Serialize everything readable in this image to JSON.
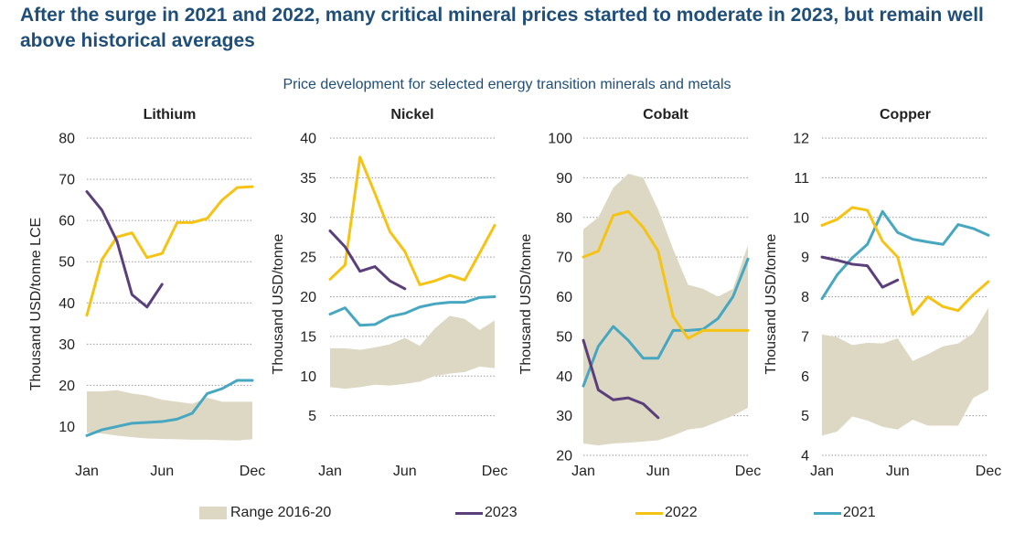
{
  "headline": "After the surge in 2021 and 2022, many critical mineral prices started to moderate in 2023, but remain well above historical averages",
  "subtitle": "Price development for selected energy transition minerals and metals",
  "colors": {
    "range": "#ddd8c4",
    "y2023": "#5a3f7a",
    "y2022": "#f5c314",
    "y2021": "#47a7c1",
    "grid": "#9a9a9a",
    "text": "#222222",
    "title": "#1f4e79"
  },
  "legend": {
    "range": "Range 2016-20",
    "y2023": "2023",
    "y2022": "2022",
    "y2021": "2021"
  },
  "chart_data": [
    {
      "type": "line",
      "title": "Lithium",
      "ylabel": "Thousand USD/tonne LCE",
      "ylim": [
        3,
        80
      ],
      "yticks": [
        10,
        20,
        30,
        40,
        50,
        60,
        70,
        80
      ],
      "x_ticks": [
        "Jan",
        "Jun",
        "Dec"
      ],
      "grid": "horizontal dotted",
      "range_2016_20": {
        "low": [
          8.5,
          8.3,
          7.8,
          7.4,
          7.1,
          7.0,
          6.9,
          6.8,
          6.8,
          6.7,
          6.6,
          6.9
        ],
        "high": [
          18.5,
          18.5,
          18.8,
          18.0,
          17.5,
          16.5,
          16.0,
          15.5,
          17.0,
          16.0,
          16.0,
          16.0
        ]
      },
      "series": [
        {
          "name": "2023",
          "values": [
            67.0,
            62.5,
            55.0,
            42.0,
            39.0,
            44.5
          ]
        },
        {
          "name": "2022",
          "values": [
            37.0,
            50.5,
            56.0,
            57.0,
            51.0,
            52.0,
            59.5,
            59.5,
            60.5,
            65.0,
            68.0,
            68.2
          ]
        },
        {
          "name": "2021",
          "values": [
            7.8,
            9.2,
            10.0,
            10.8,
            11.0,
            11.2,
            11.8,
            13.2,
            18.0,
            19.2,
            21.2,
            21.2
          ]
        }
      ]
    },
    {
      "type": "line",
      "title": "Nickel",
      "ylabel": "Thousand USD/tonne",
      "ylim": [
        0,
        40
      ],
      "yticks": [
        5,
        10,
        15,
        20,
        25,
        30,
        35,
        40
      ],
      "x_ticks": [
        "Jan",
        "Jun",
        "Dec"
      ],
      "grid": "horizontal dotted",
      "range_2016_20": {
        "low": [
          8.6,
          8.4,
          8.6,
          8.9,
          8.8,
          9.0,
          9.3,
          10.0,
          10.3,
          10.5,
          11.2,
          11.0
        ],
        "high": [
          13.5,
          13.5,
          13.3,
          13.6,
          14.0,
          14.8,
          13.8,
          16.0,
          17.6,
          17.2,
          15.8,
          17.0
        ]
      },
      "series": [
        {
          "name": "2023",
          "values": [
            28.3,
            26.3,
            23.2,
            23.8,
            22.0,
            21.0
          ]
        },
        {
          "name": "2022",
          "values": [
            22.2,
            24.0,
            37.6,
            33.0,
            28.2,
            25.7,
            21.5,
            22.0,
            22.7,
            22.1,
            25.5,
            29.0
          ]
        },
        {
          "name": "2021",
          "values": [
            17.8,
            18.6,
            16.4,
            16.5,
            17.5,
            17.9,
            18.7,
            19.1,
            19.3,
            19.3,
            19.9,
            20.0
          ]
        }
      ]
    },
    {
      "type": "line",
      "title": "Cobalt",
      "ylabel": "Thousand USD/tonne",
      "ylim": [
        20,
        100
      ],
      "yticks": [
        20,
        30,
        40,
        50,
        60,
        70,
        80,
        90,
        100
      ],
      "x_ticks": [
        "Jan",
        "Jun",
        "Dec"
      ],
      "grid": "horizontal dotted",
      "range_2016_20": {
        "low": [
          23.0,
          22.5,
          23.0,
          23.2,
          23.5,
          23.8,
          25.0,
          26.5,
          27.0,
          28.5,
          30.0,
          32.0
        ],
        "high": [
          77.0,
          80.0,
          87.5,
          91.0,
          90.0,
          82.0,
          72.0,
          63.0,
          62.0,
          60.0,
          62.0,
          73.0
        ]
      },
      "series": [
        {
          "name": "2023",
          "values": [
            49.0,
            36.5,
            34.0,
            34.5,
            33.0,
            29.5
          ]
        },
        {
          "name": "2022",
          "values": [
            70.0,
            71.5,
            80.5,
            81.5,
            77.5,
            71.5,
            55.0,
            49.5,
            51.5,
            51.5,
            51.5,
            51.5
          ]
        },
        {
          "name": "2021",
          "values": [
            37.5,
            47.5,
            52.5,
            49.0,
            44.5,
            44.5,
            51.5,
            51.5,
            51.8,
            54.5,
            60.0,
            69.5
          ]
        }
      ]
    },
    {
      "type": "line",
      "title": "Copper",
      "ylabel": "Thousand USD/tonne",
      "ylim": [
        4,
        12
      ],
      "yticks": [
        4,
        5,
        6,
        7,
        8,
        9,
        10,
        11,
        12
      ],
      "x_ticks": [
        "Jan",
        "Jun",
        "Dec"
      ],
      "grid": "horizontal dotted",
      "range_2016_20": {
        "low": [
          4.5,
          4.6,
          4.98,
          4.88,
          4.72,
          4.65,
          4.9,
          4.75,
          4.75,
          4.75,
          5.45,
          5.65
        ],
        "high": [
          7.05,
          6.98,
          6.78,
          6.84,
          6.82,
          6.95,
          6.38,
          6.55,
          6.75,
          6.82,
          7.08,
          7.72
        ]
      },
      "series": [
        {
          "name": "2023",
          "values": [
            9.0,
            8.92,
            8.82,
            8.78,
            8.24,
            8.42
          ]
        },
        {
          "name": "2022",
          "values": [
            9.8,
            9.95,
            10.25,
            10.18,
            9.4,
            9.0,
            7.55,
            8.0,
            7.75,
            7.65,
            8.05,
            8.38
          ]
        },
        {
          "name": "2021",
          "values": [
            7.95,
            8.55,
            8.98,
            9.32,
            10.15,
            9.62,
            9.45,
            9.38,
            9.32,
            9.82,
            9.72,
            9.55
          ]
        }
      ]
    }
  ]
}
